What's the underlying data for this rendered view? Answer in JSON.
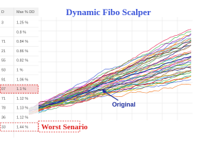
{
  "title": "Dynamic Fibo Scalper",
  "annotations": {
    "original": "Original",
    "worst": "Worst Senario"
  },
  "table": {
    "header": [
      "D",
      "Max % DD"
    ],
    "rows": [
      [
        "3",
        "1.25 %"
      ],
      [
        "",
        "0.8 %"
      ],
      [
        "71",
        "0.84 %"
      ],
      [
        "21",
        "0.86 %"
      ],
      [
        "55",
        "0.82 %"
      ],
      [
        "93",
        "1 %"
      ],
      [
        "91",
        "1.06 %"
      ],
      [
        "07",
        "1.1 %"
      ],
      [
        "71",
        "1.12 %"
      ],
      [
        "78",
        "1.13 %"
      ],
      [
        "36",
        "1.12 %"
      ],
      [
        "33",
        "1.44 %"
      ]
    ]
  }
}
